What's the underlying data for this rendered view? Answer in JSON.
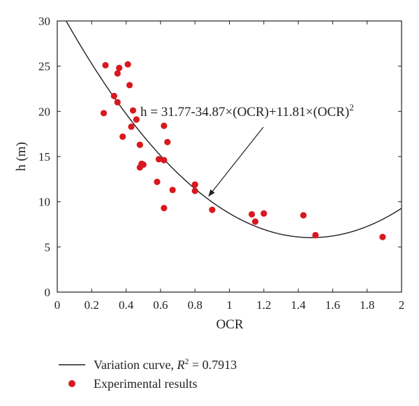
{
  "chart_data": {
    "type": "scatter",
    "xlabel": "OCR",
    "ylabel": "h (m)",
    "xlim": [
      0,
      2
    ],
    "ylim": [
      0,
      30
    ],
    "x_ticks": [
      "0",
      "0.2",
      "0.4",
      "0.6",
      "0.8",
      "1",
      "1.2",
      "1.4",
      "1.6",
      "1.8",
      "2"
    ],
    "y_ticks": [
      "0",
      "5",
      "10",
      "15",
      "20",
      "25",
      "30"
    ],
    "grid": false,
    "legend_placement": "bottom-left",
    "annotation": {
      "prefix": "h = 31.77-34.87×(OCR)+11.81×(OCR)",
      "superscript": "2",
      "arrow_target": {
        "x": 0.88,
        "y": 10.4
      }
    },
    "curve": {
      "name_prefix": "Variation curve, ",
      "r_symbol": "R",
      "r_superscript": "2",
      "r_value": " = 0.7913",
      "coefficients": [
        31.77,
        -34.87,
        11.81
      ],
      "color": "#231f20"
    },
    "series": [
      {
        "name": "Experimental results",
        "color": "#d7191f",
        "points": [
          {
            "x": 0.28,
            "y": 25.1
          },
          {
            "x": 0.27,
            "y": 19.8
          },
          {
            "x": 0.33,
            "y": 21.7
          },
          {
            "x": 0.35,
            "y": 21.0
          },
          {
            "x": 0.35,
            "y": 24.2
          },
          {
            "x": 0.36,
            "y": 24.8
          },
          {
            "x": 0.38,
            "y": 17.2
          },
          {
            "x": 0.41,
            "y": 25.2
          },
          {
            "x": 0.42,
            "y": 22.9
          },
          {
            "x": 0.43,
            "y": 18.3
          },
          {
            "x": 0.44,
            "y": 20.1
          },
          {
            "x": 0.46,
            "y": 19.1
          },
          {
            "x": 0.48,
            "y": 16.3
          },
          {
            "x": 0.48,
            "y": 13.8
          },
          {
            "x": 0.49,
            "y": 14.2
          },
          {
            "x": 0.5,
            "y": 14.1
          },
          {
            "x": 0.58,
            "y": 12.2
          },
          {
            "x": 0.59,
            "y": 14.7
          },
          {
            "x": 0.62,
            "y": 18.4
          },
          {
            "x": 0.62,
            "y": 14.6
          },
          {
            "x": 0.62,
            "y": 9.3
          },
          {
            "x": 0.64,
            "y": 16.6
          },
          {
            "x": 0.67,
            "y": 11.3
          },
          {
            "x": 0.8,
            "y": 11.9
          },
          {
            "x": 0.8,
            "y": 11.2
          },
          {
            "x": 0.9,
            "y": 9.1
          },
          {
            "x": 1.13,
            "y": 8.6
          },
          {
            "x": 1.15,
            "y": 7.8
          },
          {
            "x": 1.2,
            "y": 8.7
          },
          {
            "x": 1.43,
            "y": 8.5
          },
          {
            "x": 1.5,
            "y": 6.3
          },
          {
            "x": 1.89,
            "y": 6.1
          }
        ]
      }
    ]
  }
}
